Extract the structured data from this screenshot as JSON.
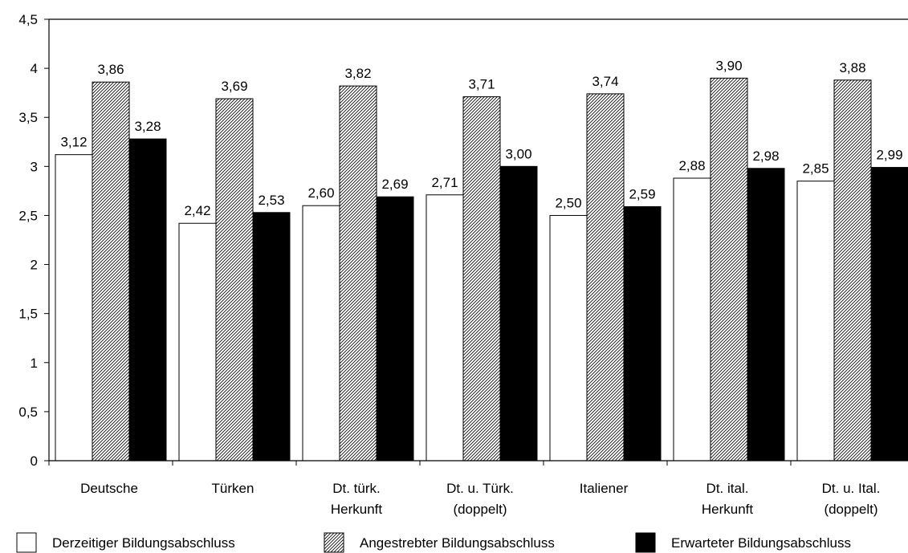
{
  "chart_data": {
    "type": "bar",
    "title": "",
    "xlabel": "",
    "ylabel": "",
    "ylim": [
      0,
      4.5
    ],
    "yticks": [
      "0",
      "0,5",
      "1",
      "1,5",
      "2",
      "2,5",
      "3",
      "3,5",
      "4",
      "4,5"
    ],
    "grid": false,
    "legend_position": "bottom",
    "categories": [
      [
        "Deutsche"
      ],
      [
        "Türken"
      ],
      [
        "Dt. türk.",
        "Herkunft"
      ],
      [
        "Dt. u. Türk.",
        "(doppelt)"
      ],
      [
        "Italiener"
      ],
      [
        "Dt. ital.",
        "Herkunft"
      ],
      [
        "Dt. u. Ital.",
        "(doppelt)"
      ]
    ],
    "series": [
      {
        "name": "Derzeitiger Bildungsabschluss",
        "fill": "#ffffff",
        "pattern": "none",
        "values": [
          3.12,
          2.42,
          2.6,
          2.71,
          2.5,
          2.88,
          2.85
        ],
        "labels": [
          "3,12",
          "2,42",
          "2,60",
          "2,71",
          "2,50",
          "2,88",
          "2,85"
        ]
      },
      {
        "name": "Angestrebter Bildungsabschluss",
        "fill": "#ffffff",
        "pattern": "hatch",
        "values": [
          3.86,
          3.69,
          3.82,
          3.71,
          3.74,
          3.9,
          3.88
        ],
        "labels": [
          "3,86",
          "3,69",
          "3,82",
          "3,71",
          "3,74",
          "3,90",
          "3,88"
        ]
      },
      {
        "name": "Erwarteter Bildungsabschluss",
        "fill": "#000000",
        "pattern": "none",
        "values": [
          3.28,
          2.53,
          2.69,
          3.0,
          2.59,
          2.98,
          2.99
        ],
        "labels": [
          "3,28",
          "2,53",
          "2,69",
          "3,00",
          "2,59",
          "2,98",
          "2,99"
        ]
      }
    ]
  }
}
